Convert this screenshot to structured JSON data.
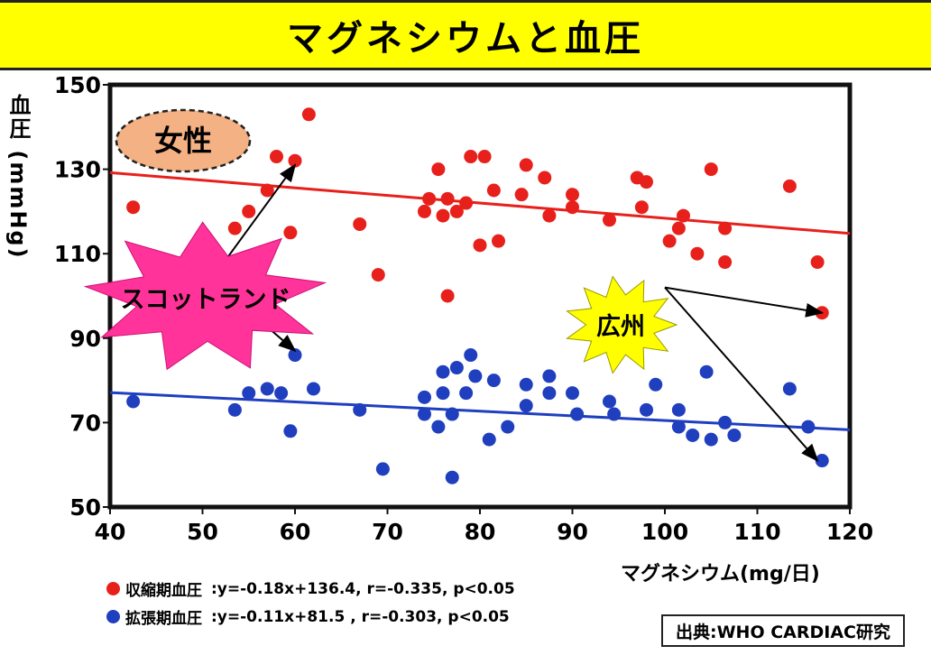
{
  "title": "マグネシウムと血圧",
  "source": "出典:WHO CARDIAC研究",
  "chart_data": {
    "type": "scatter",
    "title": "マグネシウムと血圧",
    "xlabel": "マグネシウム(mg/日)",
    "ylabel": "血圧 (mmHg)",
    "xlim": [
      40,
      120
    ],
    "ylim": [
      50,
      150
    ],
    "x_ticks": [
      "40",
      "50",
      "60",
      "70",
      "80",
      "90",
      "100",
      "110",
      "120"
    ],
    "y_ticks": [
      "50",
      "70",
      "90",
      "110",
      "130",
      "150"
    ],
    "grid": false,
    "panel_label": "女性",
    "series": [
      {
        "name": "収縮期血圧",
        "color": "#e8201c",
        "legend": ":y=-0.18x+136.4, r=-0.335, p<0.05",
        "trend": {
          "slope": -0.18,
          "intercept": 136.4
        },
        "points": [
          [
            42.5,
            121
          ],
          [
            53.5,
            116
          ],
          [
            55,
            120
          ],
          [
            57,
            125
          ],
          [
            58,
            133
          ],
          [
            60,
            132
          ],
          [
            61.5,
            143
          ],
          [
            59.5,
            115
          ],
          [
            67,
            117
          ],
          [
            69,
            105
          ],
          [
            74,
            120
          ],
          [
            74.5,
            123
          ],
          [
            75.5,
            130
          ],
          [
            76,
            119
          ],
          [
            76.5,
            123
          ],
          [
            77.5,
            120
          ],
          [
            76.5,
            100
          ],
          [
            78.5,
            122
          ],
          [
            79,
            133
          ],
          [
            80.5,
            133
          ],
          [
            80,
            112
          ],
          [
            81.5,
            125
          ],
          [
            82,
            113
          ],
          [
            84.5,
            124
          ],
          [
            85,
            131
          ],
          [
            87,
            128
          ],
          [
            87.5,
            119
          ],
          [
            90,
            124
          ],
          [
            90,
            121
          ],
          [
            94,
            118
          ],
          [
            97,
            128
          ],
          [
            98,
            127
          ],
          [
            97.5,
            121
          ],
          [
            100.5,
            113
          ],
          [
            101.5,
            116
          ],
          [
            102,
            119
          ],
          [
            103.5,
            110
          ],
          [
            105,
            130
          ],
          [
            106.5,
            116
          ],
          [
            106.5,
            108
          ],
          [
            113.5,
            126
          ],
          [
            116.5,
            108
          ],
          [
            117,
            96
          ]
        ]
      },
      {
        "name": "拡張期血圧",
        "color": "#1f3fbf",
        "legend": ":y=-0.11x+81.5 , r=-0.303, p<0.05",
        "trend": {
          "slope": -0.11,
          "intercept": 81.5
        },
        "points": [
          [
            42.5,
            75
          ],
          [
            53.5,
            73
          ],
          [
            55,
            77
          ],
          [
            57,
            78
          ],
          [
            58.5,
            77
          ],
          [
            59.5,
            68
          ],
          [
            60,
            86
          ],
          [
            62,
            78
          ],
          [
            67,
            73
          ],
          [
            69.5,
            59
          ],
          [
            74,
            76
          ],
          [
            74,
            72
          ],
          [
            75.5,
            69
          ],
          [
            76,
            82
          ],
          [
            76,
            77
          ],
          [
            77,
            72
          ],
          [
            77,
            57
          ],
          [
            77.5,
            83
          ],
          [
            78.5,
            77
          ],
          [
            79,
            86
          ],
          [
            79.5,
            81
          ],
          [
            81,
            66
          ],
          [
            81.5,
            80
          ],
          [
            83,
            69
          ],
          [
            85,
            79
          ],
          [
            85,
            74
          ],
          [
            87.5,
            81
          ],
          [
            87.5,
            77
          ],
          [
            90,
            77
          ],
          [
            90.5,
            72
          ],
          [
            94,
            75
          ],
          [
            94.5,
            72
          ],
          [
            98,
            73
          ],
          [
            99,
            79
          ],
          [
            101.5,
            73
          ],
          [
            101.5,
            69
          ],
          [
            103,
            67
          ],
          [
            104.5,
            82
          ],
          [
            105,
            66
          ],
          [
            106.5,
            70
          ],
          [
            107.5,
            67
          ],
          [
            113.5,
            78
          ],
          [
            115.5,
            69
          ],
          [
            117,
            61
          ]
        ]
      }
    ],
    "annotations": [
      {
        "text": "スコットランド",
        "from": [
          51,
          104
        ],
        "to": [
          [
            60,
            131
          ],
          [
            60,
            87
          ]
        ]
      },
      {
        "text": "広州",
        "from": [
          100,
          102
        ],
        "to": [
          [
            117,
            96
          ],
          [
            116.5,
            61
          ]
        ]
      }
    ]
  }
}
